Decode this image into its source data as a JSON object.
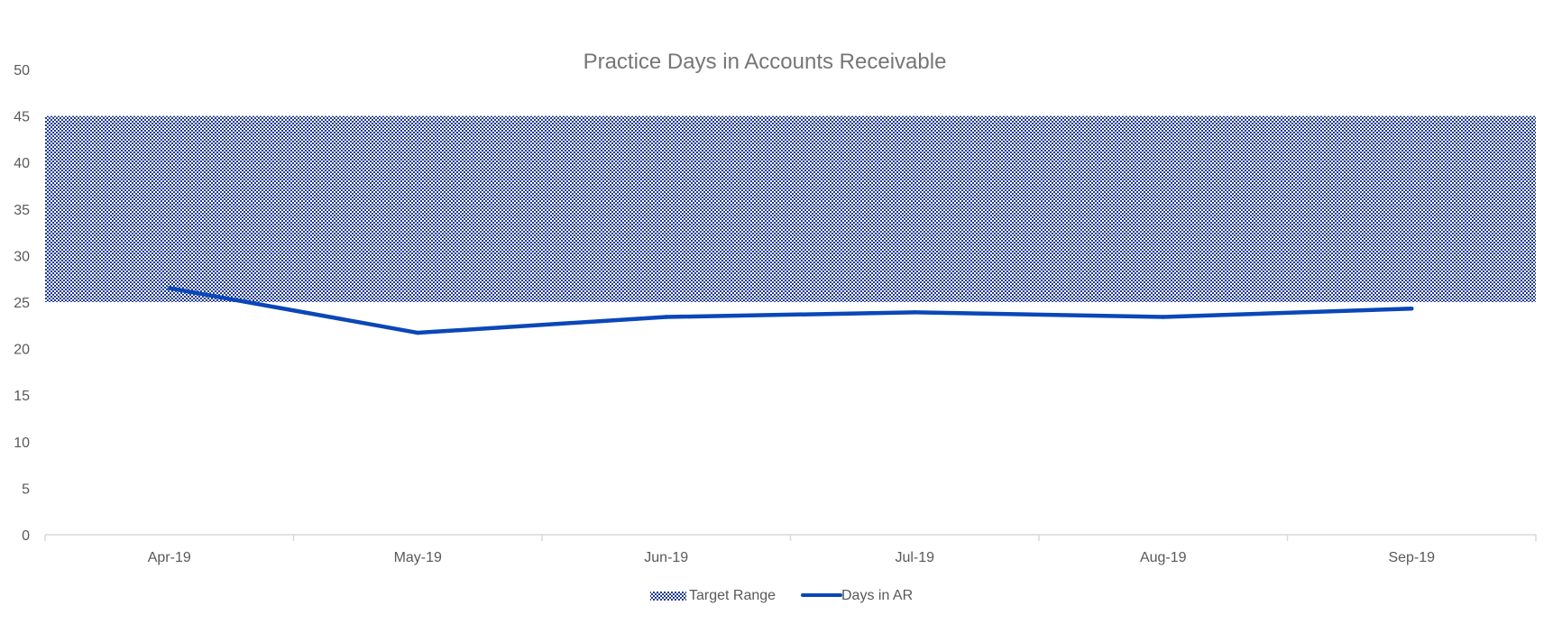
{
  "chart_data": {
    "type": "line",
    "title": "Practice Days in Accounts Receivable",
    "xlabel": "",
    "ylabel": "",
    "categories": [
      "Apr-19",
      "May-19",
      "Jun-19",
      "Jul-19",
      "Aug-19",
      "Sep-19"
    ],
    "ylim": [
      0,
      50
    ],
    "yticks": [
      0,
      5,
      10,
      15,
      20,
      25,
      30,
      35,
      40,
      45,
      50
    ],
    "grid": false,
    "legend_position": "bottom",
    "target_range": {
      "name": "Target Range",
      "min": 25,
      "max": 45,
      "color": "#1f3a93"
    },
    "series": [
      {
        "name": "Days in AR",
        "values": [
          26.5,
          21.7,
          23.4,
          23.9,
          23.4,
          24.3
        ],
        "color": "#0a47b8"
      }
    ],
    "axis_color": "#d9d9d9"
  }
}
